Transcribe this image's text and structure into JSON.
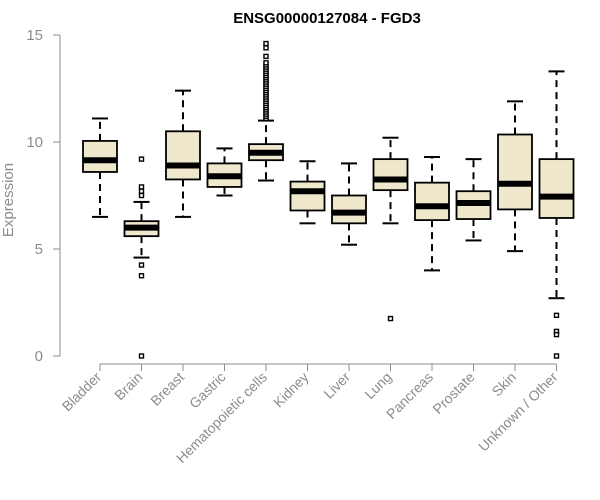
{
  "chart_data": {
    "type": "boxplot",
    "title": "ENSG00000127084 - FGD3",
    "xlabel": "",
    "ylabel": "Expression",
    "ylim": [
      0,
      15
    ],
    "yticks": [
      0,
      5,
      10,
      15
    ],
    "grid": false,
    "legend": "none",
    "colors": {
      "box_fill": "#efe8cc",
      "box_stroke": "#000000",
      "axis": "#8c8c8c",
      "text": "#8c8c8c",
      "title": "#000000"
    },
    "categories": [
      "Bladder",
      "Brain",
      "Breast",
      "Gastric",
      "Hematopoietic cells",
      "Kidney",
      "Liver",
      "Lung",
      "Pancreas",
      "Prostate",
      "Skin",
      "Unknown / Other"
    ],
    "boxes": [
      {
        "category": "Bladder",
        "whisker_low": 6.5,
        "q1": 8.6,
        "median": 9.15,
        "q3": 10.05,
        "whisker_high": 11.1,
        "outliers": []
      },
      {
        "category": "Brain",
        "whisker_low": 4.6,
        "q1": 5.6,
        "median": 6.0,
        "q3": 6.3,
        "whisker_high": 7.2,
        "outliers": [
          9.2,
          7.9,
          7.7,
          7.5,
          4.25,
          3.75,
          0.0
        ]
      },
      {
        "category": "Breast",
        "whisker_low": 6.5,
        "q1": 8.25,
        "median": 8.9,
        "q3": 10.5,
        "whisker_high": 12.4,
        "outliers": []
      },
      {
        "category": "Gastric",
        "whisker_low": 7.5,
        "q1": 7.9,
        "median": 8.4,
        "q3": 9.0,
        "whisker_high": 9.7,
        "outliers": []
      },
      {
        "category": "Hematopoietic cells",
        "whisker_low": 8.2,
        "q1": 9.15,
        "median": 9.5,
        "q3": 9.9,
        "whisker_high": 11.0,
        "outliers": [
          11.1,
          11.2,
          11.3,
          11.4,
          11.5,
          11.6,
          11.7,
          11.8,
          11.9,
          12.0,
          12.1,
          12.2,
          12.3,
          12.4,
          12.5,
          12.6,
          12.7,
          12.8,
          12.9,
          13.0,
          13.1,
          13.2,
          13.3,
          13.4,
          13.5,
          13.6,
          13.7,
          14.0,
          14.4,
          14.6
        ]
      },
      {
        "category": "Kidney",
        "whisker_low": 6.2,
        "q1": 6.8,
        "median": 7.7,
        "q3": 8.15,
        "whisker_high": 9.1,
        "outliers": []
      },
      {
        "category": "Liver",
        "whisker_low": 5.2,
        "q1": 6.2,
        "median": 6.7,
        "q3": 7.5,
        "whisker_high": 9.0,
        "outliers": []
      },
      {
        "category": "Lung",
        "whisker_low": 6.2,
        "q1": 7.75,
        "median": 8.25,
        "q3": 9.2,
        "whisker_high": 10.2,
        "outliers": [
          1.75
        ]
      },
      {
        "category": "Pancreas",
        "whisker_low": 4.0,
        "q1": 6.35,
        "median": 7.0,
        "q3": 8.1,
        "whisker_high": 9.3,
        "outliers": []
      },
      {
        "category": "Prostate",
        "whisker_low": 5.4,
        "q1": 6.4,
        "median": 7.15,
        "q3": 7.7,
        "whisker_high": 9.2,
        "outliers": []
      },
      {
        "category": "Skin",
        "whisker_low": 4.9,
        "q1": 6.85,
        "median": 8.05,
        "q3": 10.35,
        "whisker_high": 11.9,
        "outliers": []
      },
      {
        "category": "Unknown / Other",
        "whisker_low": 2.7,
        "q1": 6.45,
        "median": 7.45,
        "q3": 9.2,
        "whisker_high": 13.3,
        "outliers": [
          1.9,
          1.15,
          1.0,
          0.0
        ]
      }
    ]
  }
}
